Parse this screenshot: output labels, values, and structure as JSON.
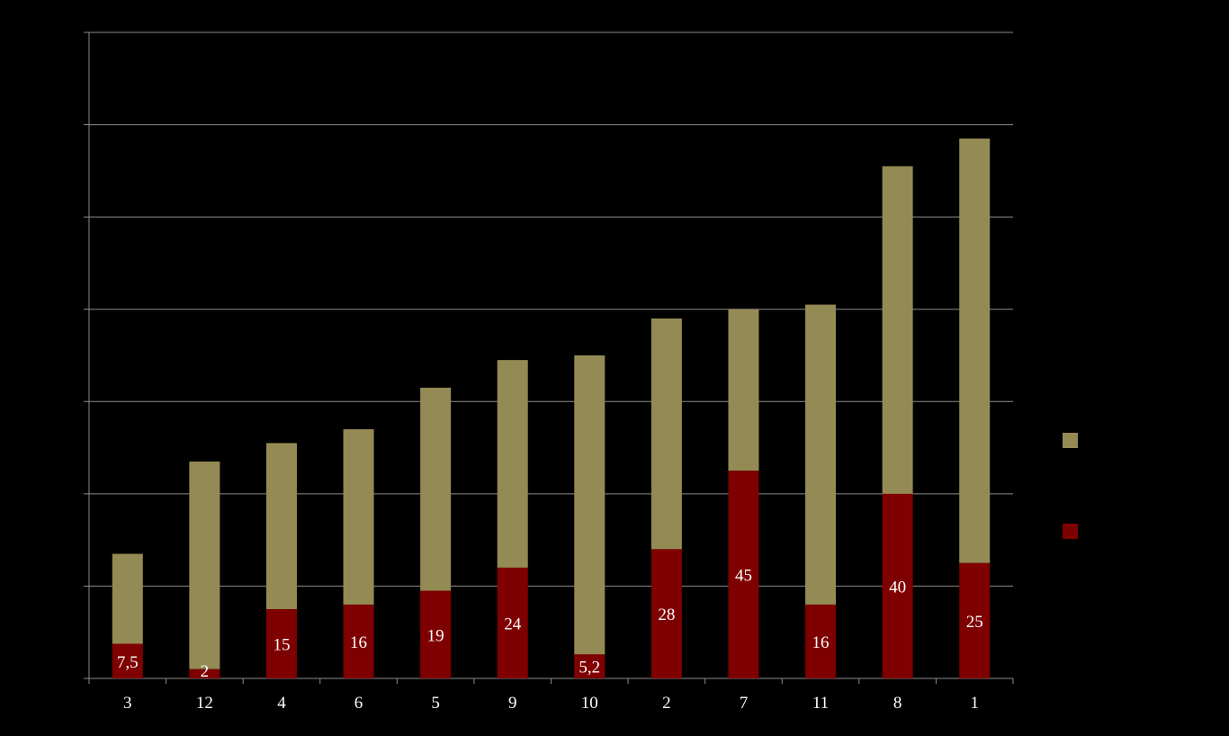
{
  "chart_data": {
    "type": "bar",
    "stacked": true,
    "categories": [
      "3",
      "12",
      "4",
      "6",
      "5",
      "9",
      "10",
      "2",
      "7",
      "11",
      "8",
      "1"
    ],
    "series": [
      {
        "key": "lower",
        "color": "#7f0000",
        "values": [
          7.5,
          2,
          15,
          16,
          19,
          24,
          5.2,
          28,
          45,
          16,
          40,
          25
        ],
        "labels": [
          "7,5",
          "2",
          "15",
          "16",
          "19",
          "24",
          "5,2",
          "28",
          "45",
          "16",
          "40",
          "25"
        ]
      },
      {
        "key": "upper",
        "color": "#948a54",
        "values": [
          19.5,
          45,
          36,
          38,
          44,
          45,
          64.8,
          50,
          35,
          65,
          71,
          92
        ]
      }
    ],
    "ylim": [
      0,
      140
    ],
    "ytick_step": 20,
    "grid": true,
    "legend_position": "right",
    "title": "",
    "xlabel": "",
    "ylabel": ""
  }
}
